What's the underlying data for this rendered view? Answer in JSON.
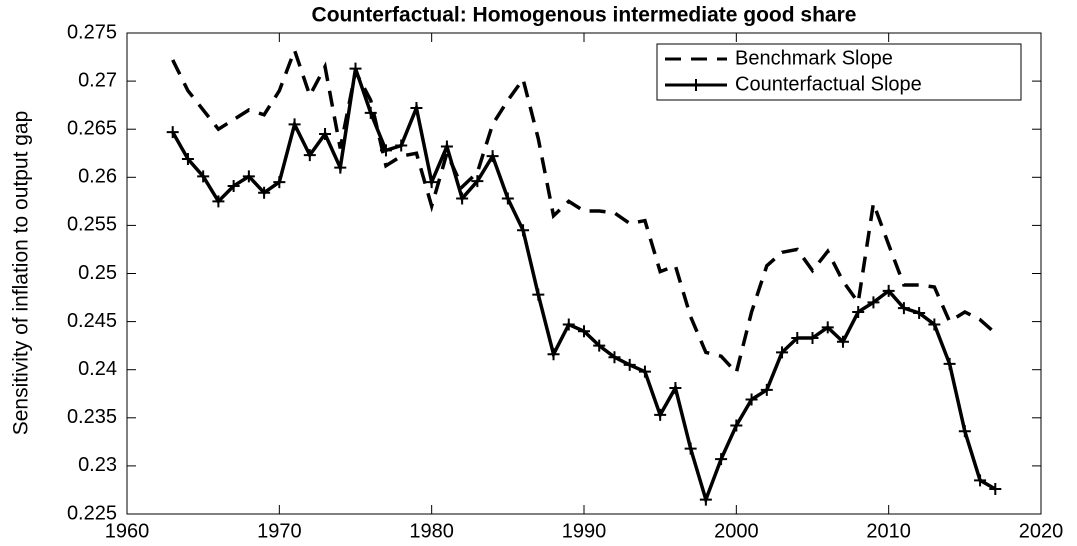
{
  "chart_data": {
    "type": "line",
    "title": "Counterfactual: Homogenous intermediate good share",
    "y_label": "Sensitivity of inflation to output gap",
    "x": [
      1963,
      1964,
      1965,
      1966,
      1967,
      1968,
      1969,
      1970,
      1971,
      1972,
      1973,
      1974,
      1975,
      1976,
      1977,
      1978,
      1979,
      1980,
      1981,
      1982,
      1983,
      1984,
      1985,
      1986,
      1987,
      1988,
      1989,
      1990,
      1991,
      1992,
      1993,
      1994,
      1995,
      1996,
      1997,
      1998,
      1999,
      2000,
      2001,
      2002,
      2003,
      2004,
      2005,
      2006,
      2007,
      2008,
      2009,
      2010,
      2011,
      2012,
      2013,
      2014,
      2015,
      2016,
      2017
    ],
    "series": [
      {
        "name": "Benchmark Slope",
        "color": "#000000",
        "style": "dashed",
        "marker": null,
        "values": [
          0.2722,
          0.269,
          0.267,
          0.265,
          0.266,
          0.267,
          0.2665,
          0.269,
          0.2732,
          0.2685,
          0.2715,
          0.263,
          0.271,
          0.268,
          0.2612,
          0.2622,
          0.2625,
          0.257,
          0.2625,
          0.259,
          0.2605,
          0.2655,
          0.268,
          0.2702,
          0.264,
          0.256,
          0.2575,
          0.2565,
          0.2565,
          0.2563,
          0.2552,
          0.2555,
          0.2502,
          0.2508,
          0.2455,
          0.2418,
          0.2414,
          0.2397,
          0.246,
          0.2508,
          0.2522,
          0.2525,
          0.2503,
          0.2523,
          0.2492,
          0.247,
          0.2573,
          0.253,
          0.2488,
          0.2488,
          0.2486,
          0.245,
          0.246,
          0.2452,
          0.2438
        ]
      },
      {
        "name": "Counterfactual Slope",
        "color": "#000000",
        "style": "solid",
        "marker": "+",
        "values": [
          0.2647,
          0.2619,
          0.2601,
          0.2575,
          0.2591,
          0.2601,
          0.2584,
          0.2595,
          0.2655,
          0.2623,
          0.2645,
          0.261,
          0.2713,
          0.2667,
          0.2628,
          0.2633,
          0.2672,
          0.2595,
          0.2632,
          0.2578,
          0.2596,
          0.2622,
          0.2578,
          0.2545,
          0.2478,
          0.2416,
          0.2447,
          0.244,
          0.2425,
          0.2413,
          0.2405,
          0.2398,
          0.2353,
          0.2381,
          0.2318,
          0.2265,
          0.2307,
          0.2342,
          0.2369,
          0.2379,
          0.2418,
          0.2433,
          0.2433,
          0.2444,
          0.2429,
          0.246,
          0.247,
          0.2482,
          0.2464,
          0.2459,
          0.2447,
          0.2406,
          0.2336,
          0.2285,
          0.2276
        ]
      }
    ],
    "xlim": [
      1960,
      2020
    ],
    "xticks": [
      1960,
      1970,
      1980,
      1990,
      2000,
      2010,
      2020
    ],
    "ylim": [
      0.225,
      0.275
    ],
    "yticks": [
      0.225,
      0.23,
      0.235,
      0.24,
      0.245,
      0.25,
      0.255,
      0.26,
      0.265,
      0.27,
      0.275
    ],
    "grid": false,
    "legend": "upper right"
  }
}
